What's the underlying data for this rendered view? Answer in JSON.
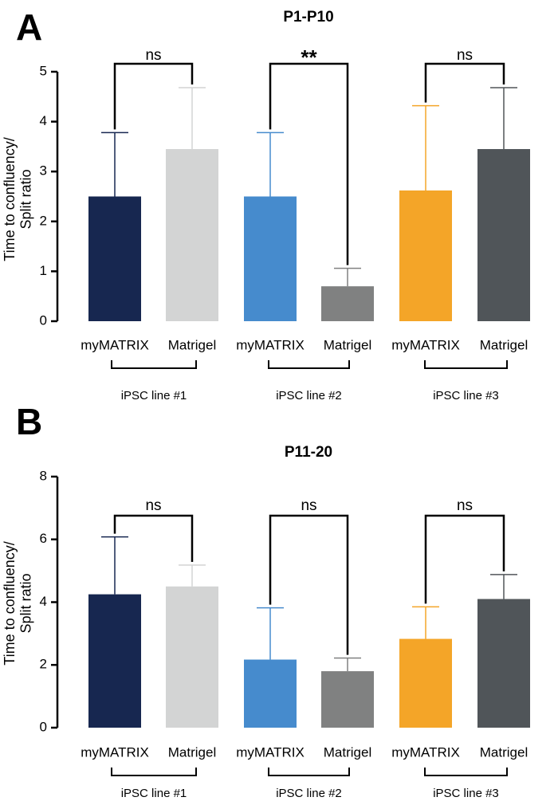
{
  "chart_data": [
    {
      "panel": "A",
      "type": "bar",
      "title": "P1-P10",
      "ylabel_lines": [
        "Time to confluency/",
        "Split ratio"
      ],
      "xlabel": "",
      "ylim": [
        0,
        5
      ],
      "yticks": [
        0,
        1,
        2,
        3,
        4,
        5
      ],
      "categories": [
        "myMATRIX",
        "Matrigel",
        "myMATRIX",
        "Matrigel",
        "myMATRIX",
        "Matrigel"
      ],
      "groups": [
        "iPSC line #1",
        "iPSC line #2",
        "iPSC line #3"
      ],
      "values": [
        2.5,
        3.45,
        2.5,
        0.7,
        2.62,
        3.45
      ],
      "error_upper": [
        3.78,
        4.68,
        3.78,
        1.06,
        4.32,
        4.68
      ],
      "colors": [
        "#172750",
        "#d3d4d4",
        "#468bcd",
        "#808181",
        "#f4a528",
        "#505559"
      ],
      "comparisons": [
        "ns",
        "**",
        "ns"
      ]
    },
    {
      "panel": "B",
      "type": "bar",
      "title": "P11-20",
      "ylabel_lines": [
        "Time to confluency/",
        "Split ratio"
      ],
      "xlabel": "",
      "ylim": [
        0,
        8
      ],
      "yticks": [
        0,
        2,
        4,
        6,
        8
      ],
      "categories": [
        "myMATRIX",
        "Matrigel",
        "myMATRIX",
        "Matrigel",
        "myMATRIX",
        "Matrigel"
      ],
      "groups": [
        "iPSC line #1",
        "iPSC line #2",
        "iPSC line #3"
      ],
      "values": [
        4.25,
        4.5,
        2.17,
        1.8,
        2.83,
        4.1
      ],
      "error_upper": [
        6.08,
        5.18,
        3.82,
        2.22,
        3.85,
        4.88
      ],
      "colors": [
        "#172750",
        "#d3d4d4",
        "#468bcd",
        "#808181",
        "#f4a528",
        "#505559"
      ],
      "comparisons": [
        "ns",
        "ns",
        "ns"
      ]
    }
  ]
}
